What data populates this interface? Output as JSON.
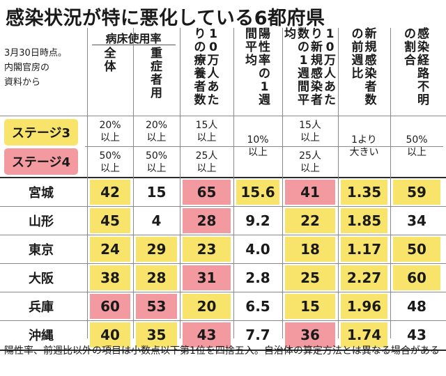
{
  "title": "感染状況が特に悪化している6都府県",
  "note": "3月30日時点。\n内閣官房の\n資料から",
  "group_header": "病床使用率",
  "columns": [
    "全体",
    "重症者用",
    "10万人あたりの療養者数",
    "陽性率の1週間平均",
    "10万人あたり新規感染者数の1週間平均",
    "新規感染者数の前週比",
    "感染経路不明の割合"
  ],
  "stage_labels": {
    "stage3": "ステージ3",
    "stage4": "ステージ4"
  },
  "thresholds": {
    "stage3": [
      "20%\n以上",
      "20%\n以上",
      "15人\n以上",
      "",
      "15人\n以上",
      "",
      "50%\n以上"
    ],
    "stage4": [
      "50%\n以上",
      "50%\n以上",
      "25人\n以上",
      "",
      "25人\n以上",
      "",
      ""
    ],
    "merged": [
      "",
      "",
      "",
      "10%\n以上",
      "",
      "1より\n大きい",
      "50%\n以上"
    ]
  },
  "footnote": "陽性率、前週比以外の項目は小数点以下第1位を四捨五入。自治体の算定方法とは異なる場合がある",
  "colors": {
    "stage3": "#f8e46b",
    "stage4": "#f39aa0"
  },
  "chart_data": {
    "type": "table",
    "title": "感染状況が特に悪化している6都府県",
    "columns": [
      "病床使用率 全体",
      "病床使用率 重症者用",
      "10万人あたりの療養者数",
      "陽性率の1週間平均",
      "10万人あたり新規感染者数の1週間平均",
      "新規感染者数の前週比",
      "感染経路不明の割合"
    ],
    "rows": [
      {
        "name": "宮城",
        "values": [
          "42",
          "15",
          "65",
          "15.6",
          "41",
          "1.35",
          "59"
        ],
        "levels": [
          "s3",
          "",
          "s4",
          "s3",
          "s4",
          "s3",
          "s3"
        ]
      },
      {
        "name": "山形",
        "values": [
          "45",
          "4",
          "28",
          "9.2",
          "22",
          "1.85",
          "34"
        ],
        "levels": [
          "s3",
          "",
          "s4",
          "",
          "s3",
          "s3",
          ""
        ]
      },
      {
        "name": "東京",
        "values": [
          "24",
          "29",
          "23",
          "4.0",
          "18",
          "1.17",
          "50"
        ],
        "levels": [
          "s3",
          "s3",
          "s3",
          "",
          "s3",
          "s3",
          "s3"
        ]
      },
      {
        "name": "大阪",
        "values": [
          "38",
          "28",
          "31",
          "2.8",
          "25",
          "2.27",
          "60"
        ],
        "levels": [
          "s3",
          "s3",
          "s4",
          "",
          "s3",
          "s3",
          "s3"
        ]
      },
      {
        "name": "兵庫",
        "values": [
          "60",
          "53",
          "20",
          "6.5",
          "15",
          "1.96",
          "48"
        ],
        "levels": [
          "s4",
          "s4",
          "s3",
          "",
          "s3",
          "s3",
          ""
        ]
      },
      {
        "name": "沖縄",
        "values": [
          "40",
          "35",
          "43",
          "7.7",
          "36",
          "1.74",
          "43"
        ],
        "levels": [
          "s3",
          "s3",
          "s4",
          "",
          "s4",
          "s3",
          ""
        ]
      }
    ]
  }
}
